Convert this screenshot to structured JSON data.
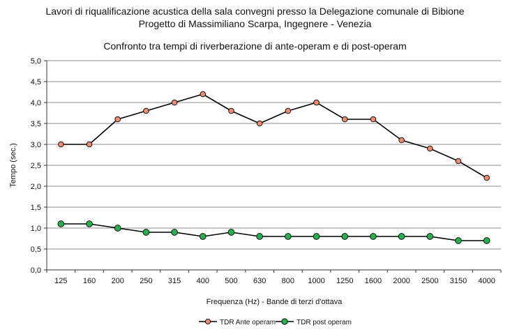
{
  "header": {
    "title_line1": "Lavori di riqualificazione acustica della sala convegni presso la Delegazione comunale di Bibione",
    "title_line2": "Progetto di Massimiliano Scarpa, Ingegnere - Venezia",
    "subtitle": "Confronto tra tempi di riverberazione di ante-operam e di post-operam"
  },
  "chart_data": {
    "type": "line",
    "title": "Confronto tra tempi di riverberazione di ante-operam e di post-operam",
    "xlabel": "Frequenza (Hz)   -   Bande di terzi d'ottava",
    "ylabel": "Tempo (sec.)",
    "categories": [
      "125",
      "160",
      "200",
      "250",
      "315",
      "400",
      "500",
      "630",
      "800",
      "1000",
      "1250",
      "1600",
      "2000",
      "2500",
      "3150",
      "4000"
    ],
    "ylim": [
      0,
      5
    ],
    "yticks": [
      "0,0",
      "0,5",
      "1,0",
      "1,5",
      "2,0",
      "2,5",
      "3,0",
      "3,5",
      "4,0",
      "4,5",
      "5,0"
    ],
    "grid": true,
    "legend_position": "bottom",
    "series": [
      {
        "name": "TDR Ante operam",
        "color": "#f08a6c",
        "values": [
          3.0,
          3.0,
          3.6,
          3.8,
          4.0,
          4.2,
          3.8,
          3.5,
          3.8,
          4.0,
          3.6,
          3.6,
          3.1,
          2.9,
          2.6,
          2.2
        ]
      },
      {
        "name": "TDR post operam",
        "color": "#22b14c",
        "values": [
          1.1,
          1.1,
          1.0,
          0.9,
          0.9,
          0.8,
          0.9,
          0.8,
          0.8,
          0.8,
          0.8,
          0.8,
          0.8,
          0.8,
          0.7,
          0.7
        ]
      }
    ]
  }
}
